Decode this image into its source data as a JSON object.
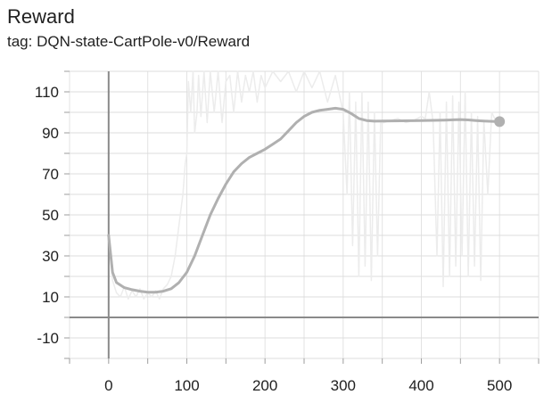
{
  "card": {
    "title": "Reward",
    "subtitle": "tag: DQN-state-CartPole-v0/Reward"
  },
  "chart_data": {
    "type": "line",
    "title": "Reward",
    "subtitle": "tag: DQN-state-CartPole-v0/Reward",
    "xlabel": "",
    "ylabel": "",
    "xlim": [
      -50,
      550
    ],
    "ylim": [
      -20,
      120
    ],
    "x_ticks": [
      0,
      100,
      200,
      300,
      400,
      500
    ],
    "y_ticks": [
      -10,
      10,
      30,
      50,
      70,
      90,
      110
    ],
    "grid": true,
    "legend": "none",
    "series": [
      {
        "role": "smoothed",
        "color": "#b0b0b0",
        "points": [
          [
            0,
            40
          ],
          [
            5,
            22
          ],
          [
            10,
            17
          ],
          [
            20,
            14.5
          ],
          [
            30,
            13.5
          ],
          [
            40,
            12.8
          ],
          [
            50,
            12.3
          ],
          [
            60,
            12.3
          ],
          [
            70,
            12.8
          ],
          [
            80,
            14
          ],
          [
            90,
            17
          ],
          [
            100,
            22
          ],
          [
            110,
            30
          ],
          [
            120,
            40
          ],
          [
            130,
            50
          ],
          [
            140,
            58
          ],
          [
            150,
            65
          ],
          [
            160,
            71
          ],
          [
            170,
            75
          ],
          [
            180,
            78
          ],
          [
            190,
            80
          ],
          [
            200,
            82
          ],
          [
            210,
            84.5
          ],
          [
            220,
            87
          ],
          [
            230,
            91
          ],
          [
            240,
            95
          ],
          [
            250,
            98
          ],
          [
            260,
            100
          ],
          [
            270,
            101
          ],
          [
            280,
            101.5
          ],
          [
            290,
            102
          ],
          [
            300,
            101.5
          ],
          [
            310,
            99.5
          ],
          [
            320,
            97
          ],
          [
            330,
            96
          ],
          [
            340,
            95.7
          ],
          [
            350,
            95.8
          ],
          [
            400,
            96
          ],
          [
            430,
            96.2
          ],
          [
            450,
            96.5
          ],
          [
            460,
            96.3
          ],
          [
            470,
            96
          ],
          [
            480,
            95.8
          ],
          [
            490,
            95.6
          ],
          [
            500,
            95.5
          ]
        ]
      },
      {
        "role": "raw",
        "color": "#ececec",
        "points": [
          [
            0,
            40
          ],
          [
            5,
            18
          ],
          [
            10,
            12
          ],
          [
            15,
            10
          ],
          [
            20,
            15
          ],
          [
            25,
            9
          ],
          [
            30,
            13
          ],
          [
            35,
            10
          ],
          [
            40,
            14
          ],
          [
            45,
            9
          ],
          [
            50,
            12
          ],
          [
            55,
            10
          ],
          [
            60,
            13
          ],
          [
            65,
            9
          ],
          [
            70,
            14
          ],
          [
            75,
            16
          ],
          [
            80,
            20
          ],
          [
            85,
            30
          ],
          [
            90,
            45
          ],
          [
            95,
            60
          ],
          [
            98,
            75
          ],
          [
            100,
            80
          ],
          [
            102,
            115
          ],
          [
            105,
            100
          ],
          [
            108,
            120
          ],
          [
            110,
            90
          ],
          [
            113,
            100
          ],
          [
            115,
            118
          ],
          [
            118,
            98
          ],
          [
            122,
            120
          ],
          [
            126,
            95
          ],
          [
            130,
            120
          ],
          [
            135,
            100
          ],
          [
            140,
            120
          ],
          [
            145,
            95
          ],
          [
            150,
            115
          ],
          [
            155,
            118
          ],
          [
            160,
            100
          ],
          [
            165,
            120
          ],
          [
            170,
            105
          ],
          [
            175,
            118
          ],
          [
            180,
            110
          ],
          [
            185,
            120
          ],
          [
            190,
            105
          ],
          [
            195,
            118
          ],
          [
            200,
            112
          ],
          [
            210,
            120
          ],
          [
            220,
            115
          ],
          [
            230,
            120
          ],
          [
            240,
            110
          ],
          [
            250,
            120
          ],
          [
            260,
            112
          ],
          [
            270,
            120
          ],
          [
            280,
            105
          ],
          [
            290,
            118
          ],
          [
            300,
            100
          ],
          [
            305,
            60
          ],
          [
            308,
            110
          ],
          [
            312,
            35
          ],
          [
            316,
            105
          ],
          [
            320,
            20
          ],
          [
            324,
            110
          ],
          [
            328,
            25
          ],
          [
            332,
            105
          ],
          [
            336,
            18
          ],
          [
            340,
            100
          ],
          [
            344,
            30
          ],
          [
            348,
            95
          ],
          [
            352,
            95
          ],
          [
            360,
            96
          ],
          [
            370,
            97
          ],
          [
            380,
            95
          ],
          [
            390,
            96
          ],
          [
            400,
            98
          ],
          [
            405,
            97
          ],
          [
            410,
            110
          ],
          [
            415,
            95
          ],
          [
            420,
            30
          ],
          [
            424,
            100
          ],
          [
            428,
            15
          ],
          [
            432,
            105
          ],
          [
            436,
            20
          ],
          [
            440,
            108
          ],
          [
            444,
            25
          ],
          [
            448,
            105
          ],
          [
            452,
            30
          ],
          [
            456,
            110
          ],
          [
            460,
            20
          ],
          [
            464,
            100
          ],
          [
            468,
            25
          ],
          [
            472,
            98
          ],
          [
            476,
            18
          ],
          [
            480,
            96
          ],
          [
            485,
            60
          ],
          [
            490,
            100
          ],
          [
            495,
            96
          ],
          [
            500,
            95
          ]
        ]
      }
    ],
    "end_marker": {
      "x": 500,
      "y": 95.5
    }
  }
}
